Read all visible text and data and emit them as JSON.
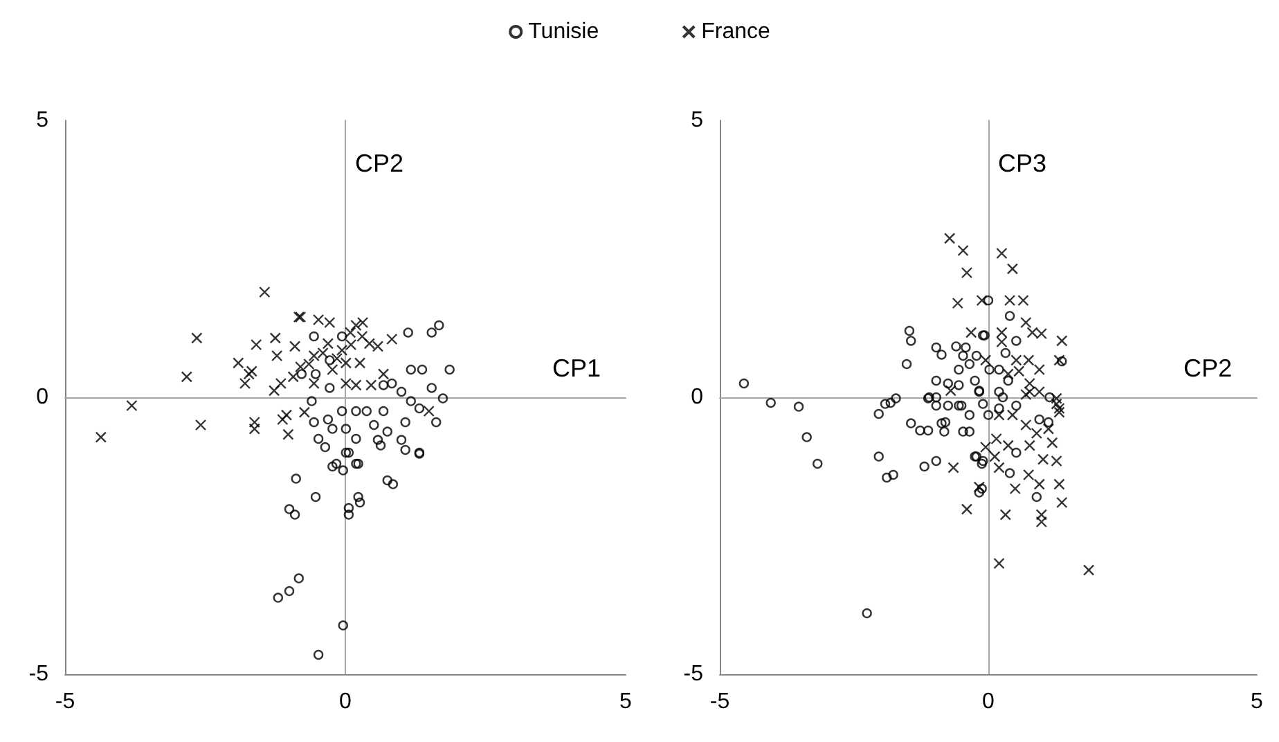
{
  "chart_data": [
    {
      "type": "scatter",
      "xlabel": "CP1",
      "ylabel": "CP2",
      "xlim": [
        -5,
        5
      ],
      "ylim": [
        -5,
        5
      ],
      "xticks": [
        -5,
        0,
        5
      ],
      "yticks": [
        -5,
        0,
        5
      ],
      "legend": "top",
      "series": [
        {
          "name": "Tunisie",
          "color": "#000000",
          "marker": "circle",
          "x": [
            -0.56,
            1.12,
            1.54,
            1.67,
            1.17,
            1.37,
            1.86,
            1.54,
            1.74,
            0.83,
            1.0,
            0.68,
            1.17,
            1.32,
            1.62,
            1.07,
            0.68,
            0.38,
            0.19,
            -0.06,
            -0.31,
            -0.56,
            -0.23,
            0.01,
            0.19,
            0.51,
            0.75,
            1.0,
            1.07,
            1.32,
            0.58,
            -0.48,
            -0.36,
            0.01,
            -0.16,
            0.19,
            -0.6,
            -0.28,
            -0.53,
            -0.78,
            -0.28,
            -0.06,
            0.06,
            -0.23,
            -0.04,
            0.23,
            -0.88,
            -0.53,
            -1.0,
            -0.9,
            0.06,
            0.23,
            0.06,
            0.26,
            0.75,
            0.85,
            1.32,
            0.63,
            -0.83,
            -1.0,
            -1.2,
            -0.04,
            -0.48
          ],
          "values": [
            1.1,
            1.17,
            1.17,
            1.3,
            0.5,
            0.5,
            0.5,
            0.17,
            -0.02,
            0.25,
            0.1,
            0.22,
            -0.07,
            -0.2,
            -0.45,
            -0.45,
            -0.25,
            -0.25,
            -0.25,
            -0.25,
            -0.4,
            -0.45,
            -0.57,
            -0.57,
            -0.75,
            -0.5,
            -0.62,
            -0.77,
            -0.95,
            -1.0,
            -0.77,
            -0.75,
            -0.9,
            -1.0,
            -1.2,
            -1.2,
            -0.07,
            0.17,
            0.42,
            0.42,
            0.67,
            1.1,
            -1.0,
            -1.25,
            -1.32,
            -1.2,
            -1.47,
            -1.8,
            -2.02,
            -2.12,
            -2.0,
            -1.8,
            -2.12,
            -1.9,
            -1.5,
            -1.57,
            -1.02,
            -0.87,
            -3.27,
            -3.5,
            -3.62,
            -4.12,
            -4.65
          ]
        },
        {
          "name": "France",
          "color": "#000000",
          "marker": "cross",
          "x": [
            -1.44,
            -2.65,
            -2.83,
            -3.81,
            -4.36,
            -2.58,
            -1.62,
            -1.62,
            -1.12,
            -1.02,
            -1.91,
            -1.59,
            -1.25,
            -1.22,
            -1.67,
            -1.79,
            -0.83,
            -0.9,
            -1.15,
            -1.27,
            -0.48,
            -0.28,
            0.19,
            0.31,
            0.09,
            -1.72,
            -0.93,
            -0.8,
            -0.56,
            -0.31,
            -0.06,
            0.01,
            0.26,
            0.43,
            0.58,
            0.83,
            0.68,
            0.46,
            0.19,
            0.01,
            -0.73,
            -1.05,
            1.49,
            -0.56,
            -0.23,
            -0.8,
            -0.4,
            0.1,
            -0.15,
            0.3,
            -0.65
          ],
          "values": [
            1.9,
            1.07,
            0.37,
            -0.15,
            -0.72,
            -0.5,
            -0.45,
            -0.57,
            -0.4,
            -0.67,
            0.62,
            0.95,
            1.07,
            0.75,
            0.47,
            0.25,
            1.45,
            0.92,
            0.25,
            0.12,
            1.4,
            1.35,
            1.3,
            1.35,
            1.17,
            0.42,
            0.37,
            0.55,
            0.75,
            0.97,
            0.85,
            0.62,
            0.62,
            0.97,
            0.92,
            1.05,
            0.42,
            0.22,
            0.22,
            0.25,
            -0.27,
            -0.32,
            -0.25,
            0.25,
            0.5,
            1.45,
            0.8,
            0.95,
            0.7,
            1.1,
            0.6
          ]
        }
      ]
    },
    {
      "type": "scatter",
      "xlabel": "CP2",
      "ylabel": "CP3",
      "xlim": [
        -5,
        5
      ],
      "ylim": [
        -5,
        5
      ],
      "xticks": [
        -5,
        0,
        5
      ],
      "yticks": [
        -5,
        0,
        5
      ],
      "series": [
        {
          "color": "#000000",
          "marker": "circle",
          "x": [
            -4.55,
            -4.05,
            -3.53,
            -3.38,
            -3.18,
            -2.04,
            -1.92,
            -1.82,
            -1.72,
            -2.04,
            -1.89,
            -1.77,
            -1.47,
            -1.44,
            -1.52,
            -1.44,
            -1.27,
            -1.12,
            -1.19,
            -0.97,
            -0.97,
            -0.87,
            -0.97,
            -1.12,
            -0.97,
            -0.97,
            -0.75,
            -0.75,
            -0.87,
            -0.82,
            -0.6,
            -0.42,
            -0.47,
            -0.55,
            -0.55,
            -0.5,
            -0.47,
            -0.35,
            -0.35,
            -0.22,
            -0.25,
            -0.35,
            -0.25,
            -0.12,
            -0.17,
            -0.17,
            -0.1,
            0.0,
            0.4,
            -0.07,
            0.52,
            0.32,
            0.02,
            0.2,
            -0.17,
            0.2,
            0.37,
            1.14,
            1.37,
            -0.22,
            -0.1,
            -0.12,
            0.9,
            0.4,
            0.52,
            0.95,
            1.12,
            -0.8,
            0.0,
            0.2,
            -0.55,
            0.52,
            -0.1,
            -1.1,
            0.27,
            -2.26
          ],
          "values": [
            0.25,
            -0.1,
            -0.17,
            -0.72,
            -1.2,
            -0.3,
            -0.12,
            -0.1,
            -0.02,
            -1.07,
            -1.45,
            -1.4,
            1.2,
            1.02,
            0.6,
            -0.47,
            -0.6,
            -0.6,
            -1.25,
            -1.15,
            0.9,
            0.77,
            0.3,
            -0.02,
            0.0,
            -0.15,
            0.25,
            -0.15,
            -0.47,
            -0.62,
            0.92,
            0.9,
            0.75,
            0.5,
            0.22,
            -0.15,
            -0.62,
            -0.62,
            -0.32,
            0.75,
            0.3,
            0.6,
            -1.07,
            -1.2,
            -1.72,
            0.1,
            1.12,
            1.75,
            1.47,
            1.12,
            1.02,
            0.8,
            0.5,
            0.5,
            0.12,
            0.1,
            0.3,
            0.0,
            0.65,
            -1.07,
            -1.15,
            -1.65,
            -1.8,
            -1.37,
            -1.0,
            -0.4,
            -0.45,
            -0.45,
            -0.32,
            -0.2,
            -0.15,
            -0.15,
            -0.12,
            0.0,
            0.0,
            -3.9
          ]
        },
        {
          "color": "#000000",
          "marker": "cross",
          "x": [
            -0.72,
            -0.47,
            -0.4,
            -0.57,
            -0.12,
            -0.32,
            -0.65,
            -0.4,
            -0.7,
            0.25,
            0.45,
            0.4,
            0.65,
            0.25,
            0.7,
            0.82,
            0.99,
            1.37,
            0.25,
            0.52,
            0.75,
            0.95,
            1.32,
            0.57,
            0.77,
            0.37,
            -0.05,
            0.95,
            1.27,
            1.32,
            0.7,
            0.32,
            0.99,
            0.99,
            0.2,
            1.87,
            -0.17,
            0.5,
            1.32,
            1.37,
            0.95,
            0.75,
            1.02,
            1.27,
            0.2,
            0.12,
            -0.05,
            0.37,
            0.77,
            1.19,
            0.9,
            1.12,
            1.32,
            1.27,
            0.7,
            0.45,
            0.15,
            0.77,
            0.2
          ],
          "values": [
            2.87,
            2.65,
            2.25,
            1.7,
            1.75,
            1.17,
            -1.27,
            -2.02,
            0.12,
            2.6,
            2.32,
            1.75,
            1.75,
            1.17,
            1.35,
            1.17,
            1.15,
            1.02,
            1.0,
            0.67,
            0.67,
            0.5,
            0.67,
            0.47,
            0.25,
            0.42,
            0.67,
            0.1,
            -0.02,
            -0.2,
            0.05,
            -2.12,
            -2.12,
            -2.25,
            -3.0,
            -3.12,
            -1.62,
            -1.65,
            -1.57,
            -1.9,
            -1.57,
            -1.4,
            -1.12,
            -1.15,
            -1.27,
            -1.07,
            -0.9,
            -0.87,
            -0.87,
            -0.82,
            -0.65,
            -0.57,
            -0.27,
            -0.12,
            -0.5,
            -0.32,
            -0.75,
            0.1,
            -0.32
          ]
        }
      ]
    }
  ]
}
